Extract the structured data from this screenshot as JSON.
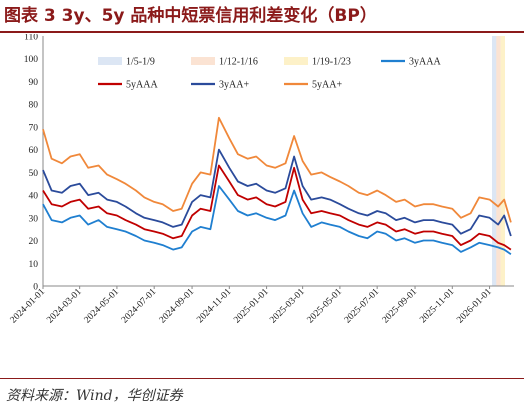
{
  "title": "图表 3   3y、5y 品种中短票信用利差变化（BP）",
  "source": "资料来源：Wind，华创证券",
  "chart_data": {
    "type": "line",
    "title": "",
    "xlabel": "",
    "ylabel": "",
    "ylim": [
      0,
      110
    ],
    "yticks": [
      0,
      10,
      20,
      30,
      40,
      50,
      60,
      70,
      80,
      90,
      100,
      110
    ],
    "grid": false,
    "legend_placement": "top",
    "x_start": "2024-01-01",
    "x_end": "2026-02-10",
    "xticks": [
      "2024-01-01",
      "2024-03-01",
      "2024-05-01",
      "2024-07-01",
      "2024-09-01",
      "2024-11-01",
      "2025-01-01",
      "2025-03-01",
      "2025-05-01",
      "2025-07-01",
      "2025-09-01",
      "2025-11-01",
      "2026-01-01"
    ],
    "shaded_periods": [
      {
        "label": "1/5-1/9",
        "start": "2026-01-05",
        "end": "2026-01-09",
        "color": "#dce6f4"
      },
      {
        "label": "1/12-1/16",
        "start": "2026-01-12",
        "end": "2026-01-16",
        "color": "#fbe3d3"
      },
      {
        "label": "1/19-1/23",
        "start": "2026-01-19",
        "end": "2026-01-23",
        "color": "#fdf1c8"
      }
    ],
    "series": [
      {
        "name": "3yAAA",
        "color": "#1f7fd0",
        "x": [
          "2024-01-01",
          "2024-01-15",
          "2024-02-01",
          "2024-02-15",
          "2024-03-01",
          "2024-03-15",
          "2024-04-01",
          "2024-04-15",
          "2024-05-01",
          "2024-05-15",
          "2024-06-01",
          "2024-06-15",
          "2024-07-01",
          "2024-07-15",
          "2024-08-01",
          "2024-08-15",
          "2024-09-01",
          "2024-09-15",
          "2024-10-01",
          "2024-10-15",
          "2024-11-01",
          "2024-11-15",
          "2024-12-01",
          "2024-12-15",
          "2025-01-01",
          "2025-01-15",
          "2025-02-01",
          "2025-02-15",
          "2025-03-01",
          "2025-03-15",
          "2025-04-01",
          "2025-04-15",
          "2025-05-01",
          "2025-05-15",
          "2025-06-01",
          "2025-06-15",
          "2025-07-01",
          "2025-07-15",
          "2025-08-01",
          "2025-08-15",
          "2025-09-01",
          "2025-09-15",
          "2025-10-01",
          "2025-10-15",
          "2025-11-01",
          "2025-11-15",
          "2025-12-01",
          "2025-12-15",
          "2026-01-01",
          "2026-01-15",
          "2026-01-25",
          "2026-02-05"
        ],
        "values": [
          36,
          29,
          28,
          30,
          31,
          27,
          29,
          26,
          25,
          24,
          22,
          20,
          19,
          18,
          16,
          17,
          24,
          26,
          25,
          44,
          38,
          33,
          31,
          32,
          30,
          29,
          31,
          42,
          32,
          26,
          28,
          27,
          26,
          24,
          22,
          21,
          24,
          23,
          20,
          21,
          19,
          20,
          20,
          19,
          18,
          15,
          17,
          19,
          18,
          17,
          16,
          14
        ]
      },
      {
        "name": "5yAAA",
        "color": "#c00000",
        "x": [
          "2024-01-01",
          "2024-01-15",
          "2024-02-01",
          "2024-02-15",
          "2024-03-01",
          "2024-03-15",
          "2024-04-01",
          "2024-04-15",
          "2024-05-01",
          "2024-05-15",
          "2024-06-01",
          "2024-06-15",
          "2024-07-01",
          "2024-07-15",
          "2024-08-01",
          "2024-08-15",
          "2024-09-01",
          "2024-09-15",
          "2024-10-01",
          "2024-10-15",
          "2024-11-01",
          "2024-11-15",
          "2024-12-01",
          "2024-12-15",
          "2025-01-01",
          "2025-01-15",
          "2025-02-01",
          "2025-02-15",
          "2025-03-01",
          "2025-03-15",
          "2025-04-01",
          "2025-04-15",
          "2025-05-01",
          "2025-05-15",
          "2025-06-01",
          "2025-06-15",
          "2025-07-01",
          "2025-07-15",
          "2025-08-01",
          "2025-08-15",
          "2025-09-01",
          "2025-09-15",
          "2025-10-01",
          "2025-10-15",
          "2025-11-01",
          "2025-11-15",
          "2025-12-01",
          "2025-12-15",
          "2026-01-01",
          "2026-01-15",
          "2026-01-25",
          "2026-02-05"
        ],
        "values": [
          42,
          36,
          35,
          37,
          38,
          34,
          35,
          32,
          31,
          29,
          27,
          25,
          24,
          23,
          21,
          22,
          31,
          34,
          33,
          53,
          46,
          40,
          38,
          39,
          36,
          35,
          37,
          52,
          38,
          32,
          33,
          32,
          31,
          29,
          27,
          26,
          28,
          27,
          24,
          25,
          23,
          24,
          24,
          23,
          22,
          18,
          20,
          23,
          22,
          19,
          18,
          16
        ]
      },
      {
        "name": "3yAA+",
        "color": "#2b4b9b",
        "x": [
          "2024-01-01",
          "2024-01-15",
          "2024-02-01",
          "2024-02-15",
          "2024-03-01",
          "2024-03-15",
          "2024-04-01",
          "2024-04-15",
          "2024-05-01",
          "2024-05-15",
          "2024-06-01",
          "2024-06-15",
          "2024-07-01",
          "2024-07-15",
          "2024-08-01",
          "2024-08-15",
          "2024-09-01",
          "2024-09-15",
          "2024-10-01",
          "2024-10-15",
          "2024-11-01",
          "2024-11-15",
          "2024-12-01",
          "2024-12-15",
          "2025-01-01",
          "2025-01-15",
          "2025-02-01",
          "2025-02-15",
          "2025-03-01",
          "2025-03-15",
          "2025-04-01",
          "2025-04-15",
          "2025-05-01",
          "2025-05-15",
          "2025-06-01",
          "2025-06-15",
          "2025-07-01",
          "2025-07-15",
          "2025-08-01",
          "2025-08-15",
          "2025-09-01",
          "2025-09-15",
          "2025-10-01",
          "2025-10-15",
          "2025-11-01",
          "2025-11-15",
          "2025-12-01",
          "2025-12-15",
          "2026-01-01",
          "2026-01-15",
          "2026-01-25",
          "2026-02-05"
        ],
        "values": [
          51,
          42,
          41,
          44,
          45,
          40,
          41,
          38,
          37,
          35,
          32,
          30,
          29,
          28,
          26,
          27,
          37,
          40,
          39,
          60,
          52,
          46,
          44,
          45,
          42,
          41,
          43,
          57,
          44,
          38,
          39,
          38,
          36,
          34,
          32,
          31,
          33,
          32,
          29,
          30,
          28,
          29,
          29,
          28,
          27,
          23,
          25,
          31,
          30,
          27,
          31,
          22
        ]
      },
      {
        "name": "5yAA+",
        "color": "#f0883a",
        "x": [
          "2024-01-01",
          "2024-01-15",
          "2024-02-01",
          "2024-02-15",
          "2024-03-01",
          "2024-03-15",
          "2024-04-01",
          "2024-04-15",
          "2024-05-01",
          "2024-05-15",
          "2024-06-01",
          "2024-06-15",
          "2024-07-01",
          "2024-07-15",
          "2024-08-01",
          "2024-08-15",
          "2024-09-01",
          "2024-09-15",
          "2024-10-01",
          "2024-10-15",
          "2024-11-01",
          "2024-11-15",
          "2024-12-01",
          "2024-12-15",
          "2025-01-01",
          "2025-01-15",
          "2025-02-01",
          "2025-02-15",
          "2025-03-01",
          "2025-03-15",
          "2025-04-01",
          "2025-04-15",
          "2025-05-01",
          "2025-05-15",
          "2025-06-01",
          "2025-06-15",
          "2025-07-01",
          "2025-07-15",
          "2025-08-01",
          "2025-08-15",
          "2025-09-01",
          "2025-09-15",
          "2025-10-01",
          "2025-10-15",
          "2025-11-01",
          "2025-11-15",
          "2025-12-01",
          "2025-12-15",
          "2026-01-01",
          "2026-01-15",
          "2026-01-25",
          "2026-02-05"
        ],
        "values": [
          69,
          56,
          54,
          57,
          58,
          52,
          53,
          49,
          47,
          45,
          42,
          39,
          37,
          36,
          33,
          34,
          45,
          50,
          49,
          74,
          65,
          58,
          56,
          57,
          53,
          52,
          54,
          66,
          55,
          49,
          50,
          48,
          46,
          44,
          41,
          40,
          42,
          40,
          37,
          38,
          35,
          36,
          36,
          35,
          34,
          30,
          32,
          39,
          38,
          35,
          38,
          28
        ]
      }
    ]
  }
}
